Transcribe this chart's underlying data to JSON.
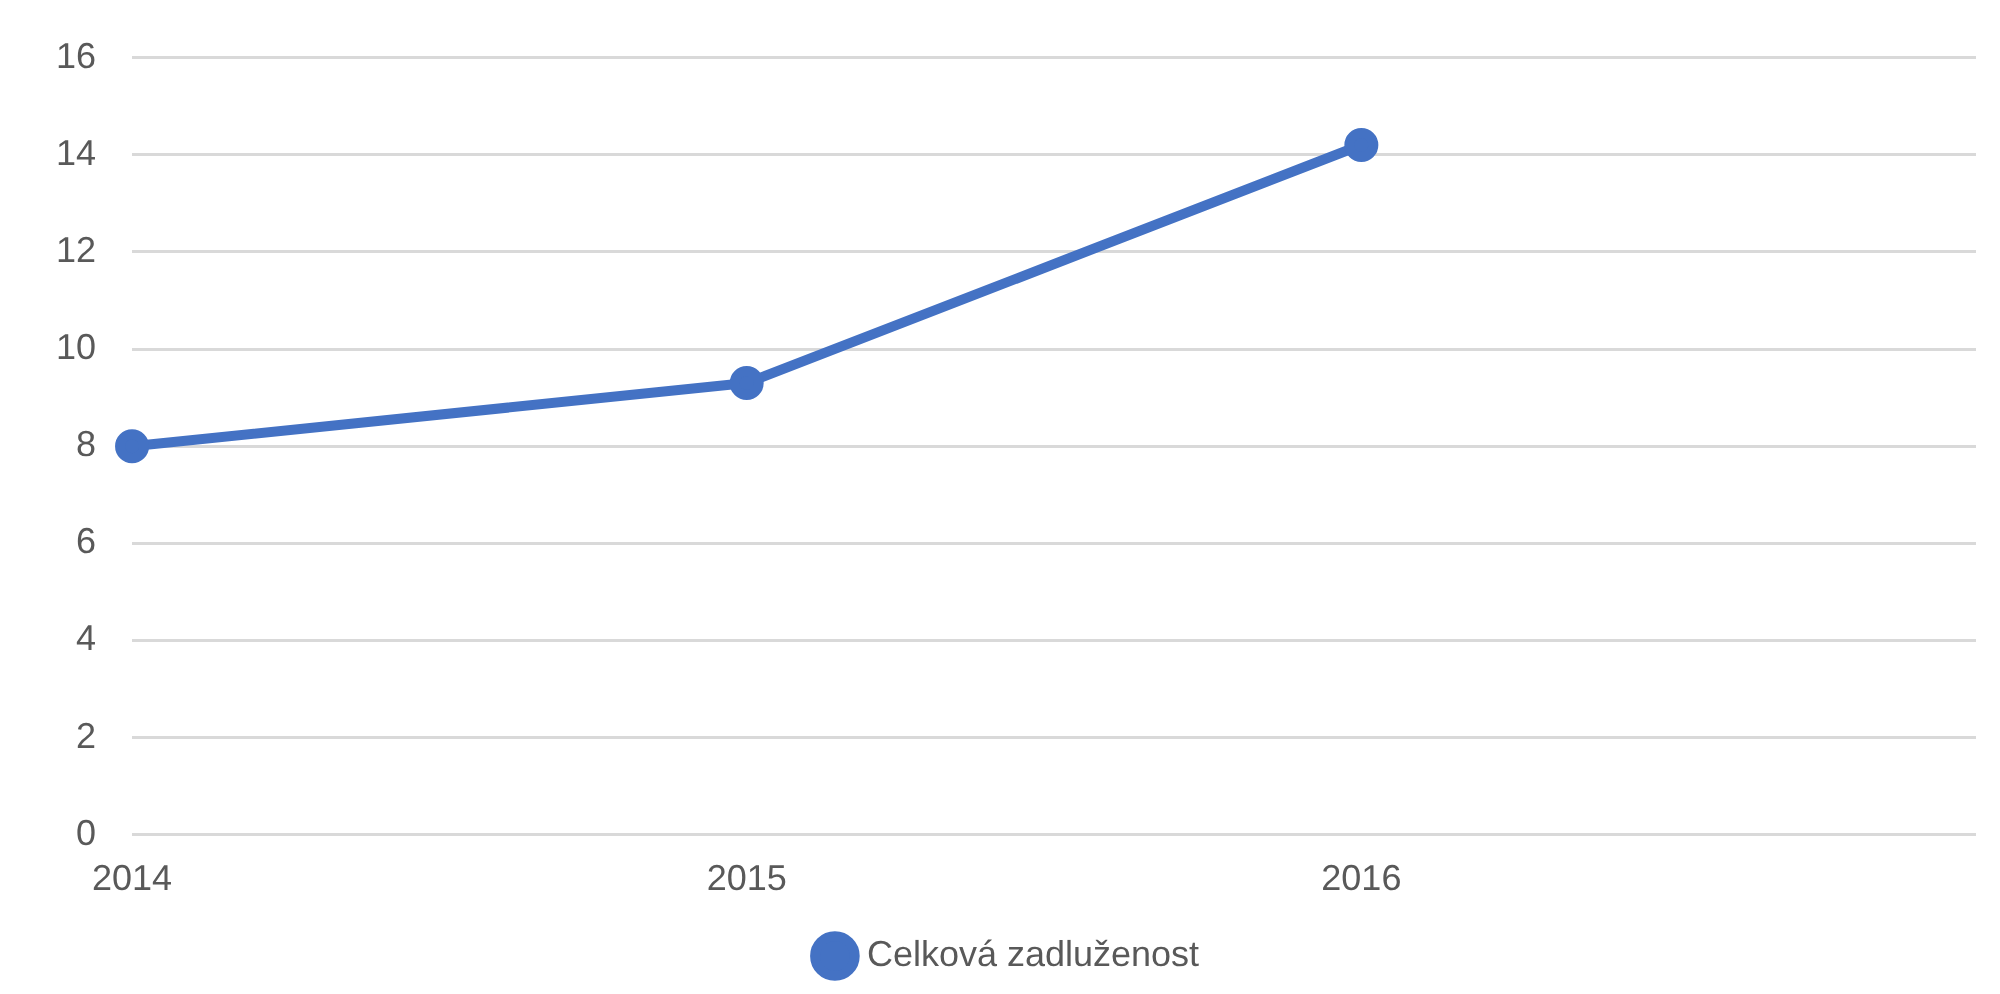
{
  "chart_data": {
    "type": "line",
    "categories": [
      "2014",
      "2015",
      "2016",
      null
    ],
    "series": [
      {
        "name": "Celková zadluženost",
        "color": "#4472c4",
        "values": [
          8,
          9.3,
          14.2,
          null
        ]
      }
    ],
    "ylim": [
      0,
      16
    ],
    "yticks": [
      0,
      2,
      4,
      6,
      8,
      10,
      12,
      14,
      16
    ],
    "grid": "y",
    "legend": "bottom",
    "marker": "circle",
    "line_style": "solid"
  }
}
